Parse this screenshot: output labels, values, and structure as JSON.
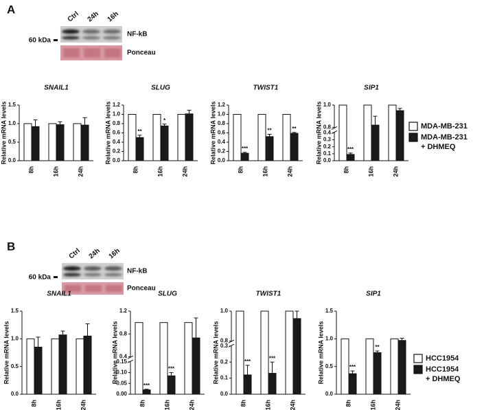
{
  "panels": [
    {
      "label": "A",
      "lanes": [
        "Ctrl",
        "24h",
        "16h"
      ],
      "marker": "60 kDa",
      "bands": [
        "NF-kB",
        "Ponceau"
      ]
    },
    {
      "label": "B",
      "lanes": [
        "Ctrl",
        "24h",
        "16h"
      ],
      "marker": "60 kDa",
      "bands": [
        "NF-kB",
        "Ponceau"
      ]
    }
  ],
  "chart_data": [
    {
      "type": "bar",
      "title": "SNAIL1",
      "ylabel": "Relative mRNA levels",
      "categories": [
        "8h",
        "16h",
        "24h"
      ],
      "ylim": [
        0,
        1.5
      ],
      "yticks": [
        {
          "value": 0,
          "label": "0.0"
        },
        0.5,
        {
          "value": 1,
          "label": "1.0"
        },
        1.5
      ],
      "series": [
        {
          "color": "#ffffff",
          "values": [
            1,
            1,
            1
          ]
        },
        {
          "color": "#1a1a1a",
          "values": [
            0.92,
            0.97,
            0.96
          ],
          "errors": [
            0.18,
            0.08,
            0.2
          ]
        }
      ]
    },
    {
      "type": "bar",
      "title": "SLUG",
      "ylabel": "Relative mRNA levels",
      "categories": [
        "8h",
        "16h",
        "24h"
      ],
      "ylim": [
        0,
        1.2
      ],
      "yticks": [
        {
          "value": 0,
          "label": "0.0"
        },
        0.2,
        0.4,
        0.6,
        0.8,
        {
          "value": 1,
          "label": "1.0"
        },
        1.2
      ],
      "series": [
        {
          "color": "#ffffff",
          "values": [
            1,
            1,
            1
          ]
        },
        {
          "color": "#1a1a1a",
          "values": [
            0.5,
            0.75,
            1.01
          ],
          "errors": [
            0.05,
            0.04,
            0.08
          ],
          "annotations": [
            "**",
            "*",
            null
          ]
        }
      ]
    },
    {
      "type": "bar",
      "title": "TWIST1",
      "ylabel": "Relative mRNA levels",
      "categories": [
        "8h",
        "16h",
        "24h"
      ],
      "ylim": [
        0,
        1.2
      ],
      "yticks": [
        {
          "value": 0,
          "label": "0.0"
        },
        0.2,
        0.4,
        0.6,
        0.8,
        {
          "value": 1,
          "label": "1.0"
        },
        1.2
      ],
      "series": [
        {
          "color": "#ffffff",
          "values": [
            1,
            1,
            1
          ]
        },
        {
          "color": "#1a1a1a",
          "values": [
            0.16,
            0.52,
            0.59
          ],
          "errors": [
            0.02,
            0.05,
            0.02
          ],
          "annotations": [
            "***",
            "**",
            "**"
          ]
        }
      ]
    },
    {
      "type": "bar",
      "title": "SIP1",
      "ylabel": "Relative mRNA levels",
      "categories": [
        "8h",
        "16h",
        "24h"
      ],
      "ylim": [
        0,
        1
      ],
      "ybreak": [
        0.4,
        0.8
      ],
      "yticks": [
        {
          "value": 0,
          "label": "0.0"
        },
        0.1,
        0.2,
        0.3,
        0.4,
        0.8,
        {
          "value": 1,
          "label": "1.0"
        }
      ],
      "series": [
        {
          "name": "MDA-MB-231",
          "color": "#ffffff",
          "values": [
            1,
            1,
            1
          ]
        },
        {
          "name": "MDA-MB-231\n+ DHMEQ",
          "color": "#1a1a1a",
          "values": [
            0.09,
            0.82,
            0.95
          ],
          "errors": [
            0.02,
            0.08,
            0.02
          ],
          "annotations": [
            "***",
            null,
            null
          ]
        }
      ]
    },
    {
      "type": "bar",
      "title": "SNAIL1",
      "ylabel": "Relative mRNA levels",
      "categories": [
        "8h",
        "16h",
        "24h"
      ],
      "ylim": [
        0,
        1.5
      ],
      "yticks": [
        {
          "value": 0,
          "label": "0.0"
        },
        0.5,
        {
          "value": 1,
          "label": "1.0"
        },
        1.5
      ],
      "series": [
        {
          "color": "#ffffff",
          "values": [
            1,
            1,
            1
          ]
        },
        {
          "color": "#1a1a1a",
          "values": [
            0.85,
            1.07,
            1.05
          ],
          "errors": [
            0.18,
            0.07,
            0.22
          ]
        }
      ]
    },
    {
      "type": "bar",
      "title": "SLUG",
      "ylabel": "Relative mRNA levels",
      "categories": [
        "8h",
        "16h",
        "24h"
      ],
      "ylim": [
        0,
        1.2
      ],
      "ybreak": [
        0.15,
        0.4
      ],
      "yticks": [
        {
          "value": 0,
          "label": "0.00"
        },
        {
          "value": 0.05,
          "label": "0.05"
        },
        {
          "value": 0.1,
          "label": "0.10"
        },
        {
          "value": 0.15,
          "label": "0.15"
        },
        0.4,
        0.8,
        1.2
      ],
      "series": [
        {
          "color": "#ffffff",
          "values": [
            1,
            1,
            1
          ]
        },
        {
          "color": "#1a1a1a",
          "values": [
            0.02,
            0.085,
            0.73
          ],
          "errors": [
            0.003,
            0.015,
            0.35
          ],
          "annotations": [
            "***",
            "***",
            null
          ]
        }
      ]
    },
    {
      "type": "bar",
      "title": "TWIST1",
      "ylabel": "Relative mRNA levels",
      "categories": [
        "8h",
        "16h",
        "24h"
      ],
      "ylim": [
        0,
        1
      ],
      "ybreak": [
        0.3,
        0.8
      ],
      "yticks": [
        {
          "value": 0,
          "label": "0.0"
        },
        0.1,
        0.2,
        0.3,
        0.8,
        {
          "value": 1,
          "label": "1.0"
        }
      ],
      "series": [
        {
          "color": "#ffffff",
          "values": [
            1,
            1,
            1
          ]
        },
        {
          "color": "#1a1a1a",
          "values": [
            0.12,
            0.13,
            0.95
          ],
          "errors": [
            0.06,
            0.07,
            0.05
          ],
          "annotations": [
            "***",
            "***",
            null
          ]
        }
      ]
    },
    {
      "type": "bar",
      "title": "SIP1",
      "ylabel": "Relative mRNA levels",
      "categories": [
        "8h",
        "16h",
        "24h"
      ],
      "ylim": [
        0,
        1.5
      ],
      "yticks": [
        {
          "value": 0,
          "label": "0.0"
        },
        0.5,
        {
          "value": 1,
          "label": "1.0"
        },
        1.5
      ],
      "series": [
        {
          "name": "HCC1954",
          "color": "#ffffff",
          "values": [
            1,
            1,
            1
          ]
        },
        {
          "name": "HCC1954\n+ DHMEQ",
          "color": "#1a1a1a",
          "values": [
            0.37,
            0.75,
            0.97
          ],
          "errors": [
            0.05,
            0.03,
            0.04
          ],
          "annotations": [
            "***",
            "**",
            null
          ]
        }
      ]
    }
  ]
}
